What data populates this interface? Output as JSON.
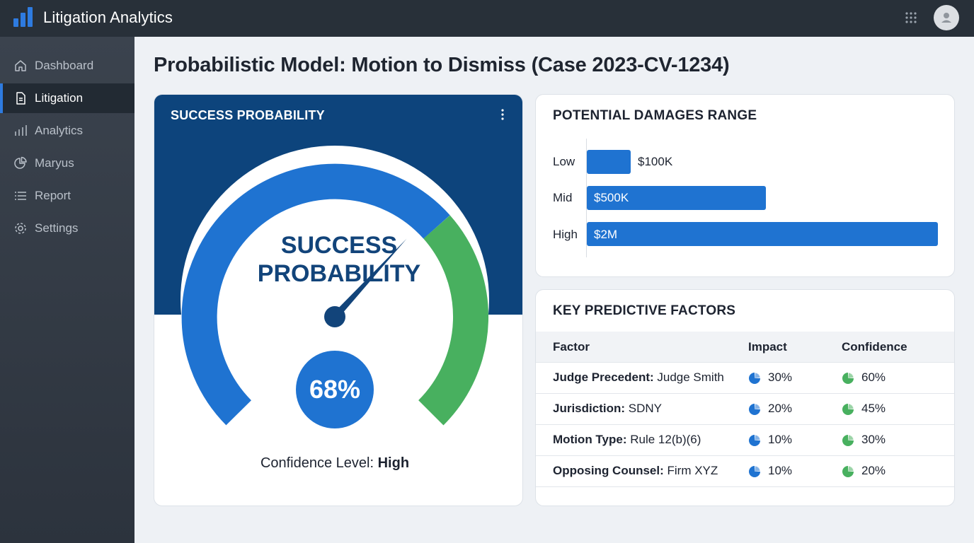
{
  "app": {
    "title": "Litigation Analytics"
  },
  "sidebar": {
    "items": [
      {
        "label": "Dashboard",
        "icon": "home-icon"
      },
      {
        "label": "Litigation",
        "icon": "document-icon"
      },
      {
        "label": "Analytics",
        "icon": "bar-chart-icon"
      },
      {
        "label": "Maryus",
        "icon": "pie-chart-icon"
      },
      {
        "label": "Report",
        "icon": "list-icon"
      },
      {
        "label": "Settings",
        "icon": "gear-icon"
      }
    ],
    "active_label": "Litigation"
  },
  "page": {
    "title": "Probabilistic Model: Motion to Dismiss (Case 2023-CV-1234)"
  },
  "gauge": {
    "card_title": "SUCCESS PROBABILITY",
    "center_line1": "SUCCESS",
    "center_line2": "PROBABILITY",
    "value_text": "68%",
    "value": 0.68,
    "confidence_label": "Confidence Level:",
    "confidence_value": "High",
    "colors": {
      "primary": "#1f73d1",
      "success": "#48b05f",
      "header": "#0d447c"
    }
  },
  "damages": {
    "card_title": "POTENTIAL DAMAGES RANGE",
    "rows": [
      {
        "label": "Low",
        "value_text": "$100K"
      },
      {
        "label": "Mid",
        "value_text": "$500K"
      },
      {
        "label": "High",
        "value_text": "$2M"
      }
    ]
  },
  "factors": {
    "card_title": "KEY PREDICTIVE FACTORS",
    "columns": [
      "Factor",
      "Impact",
      "Confidence"
    ],
    "rows": [
      {
        "name": "Judge Precedent:",
        "detail": "Judge Smith",
        "impact": "30%",
        "confidence": "60%"
      },
      {
        "name": "Jurisdiction:",
        "detail": "SDNY",
        "impact": "20%",
        "confidence": "45%"
      },
      {
        "name": "Motion Type:",
        "detail": "Rule 12(b)(6)",
        "impact": "10%",
        "confidence": "30%"
      },
      {
        "name": "Opposing Counsel:",
        "detail": "Firm XYZ",
        "impact": "10%",
        "confidence": "20%"
      }
    ]
  }
}
